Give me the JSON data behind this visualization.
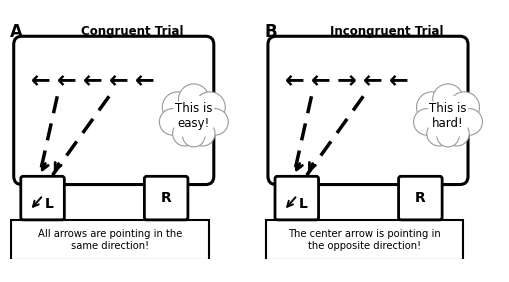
{
  "title_A": "Congruent Trial",
  "title_B": "Incongruent Trial",
  "label_A": "A",
  "label_B": "B",
  "caption_A": "All arrows are pointing in the\nsame direction!",
  "caption_B": "The center arrow is pointing in\nthe opposite direction!",
  "cloud_text_A": "This is\neasy!",
  "cloud_text_B": "This is\nhard!",
  "congruent_arrows": [
    "←",
    "←",
    "←",
    "←",
    "←"
  ],
  "incongruent_arrows": [
    "←",
    "←",
    "→",
    "←",
    "←"
  ],
  "bg_color": "#ffffff"
}
